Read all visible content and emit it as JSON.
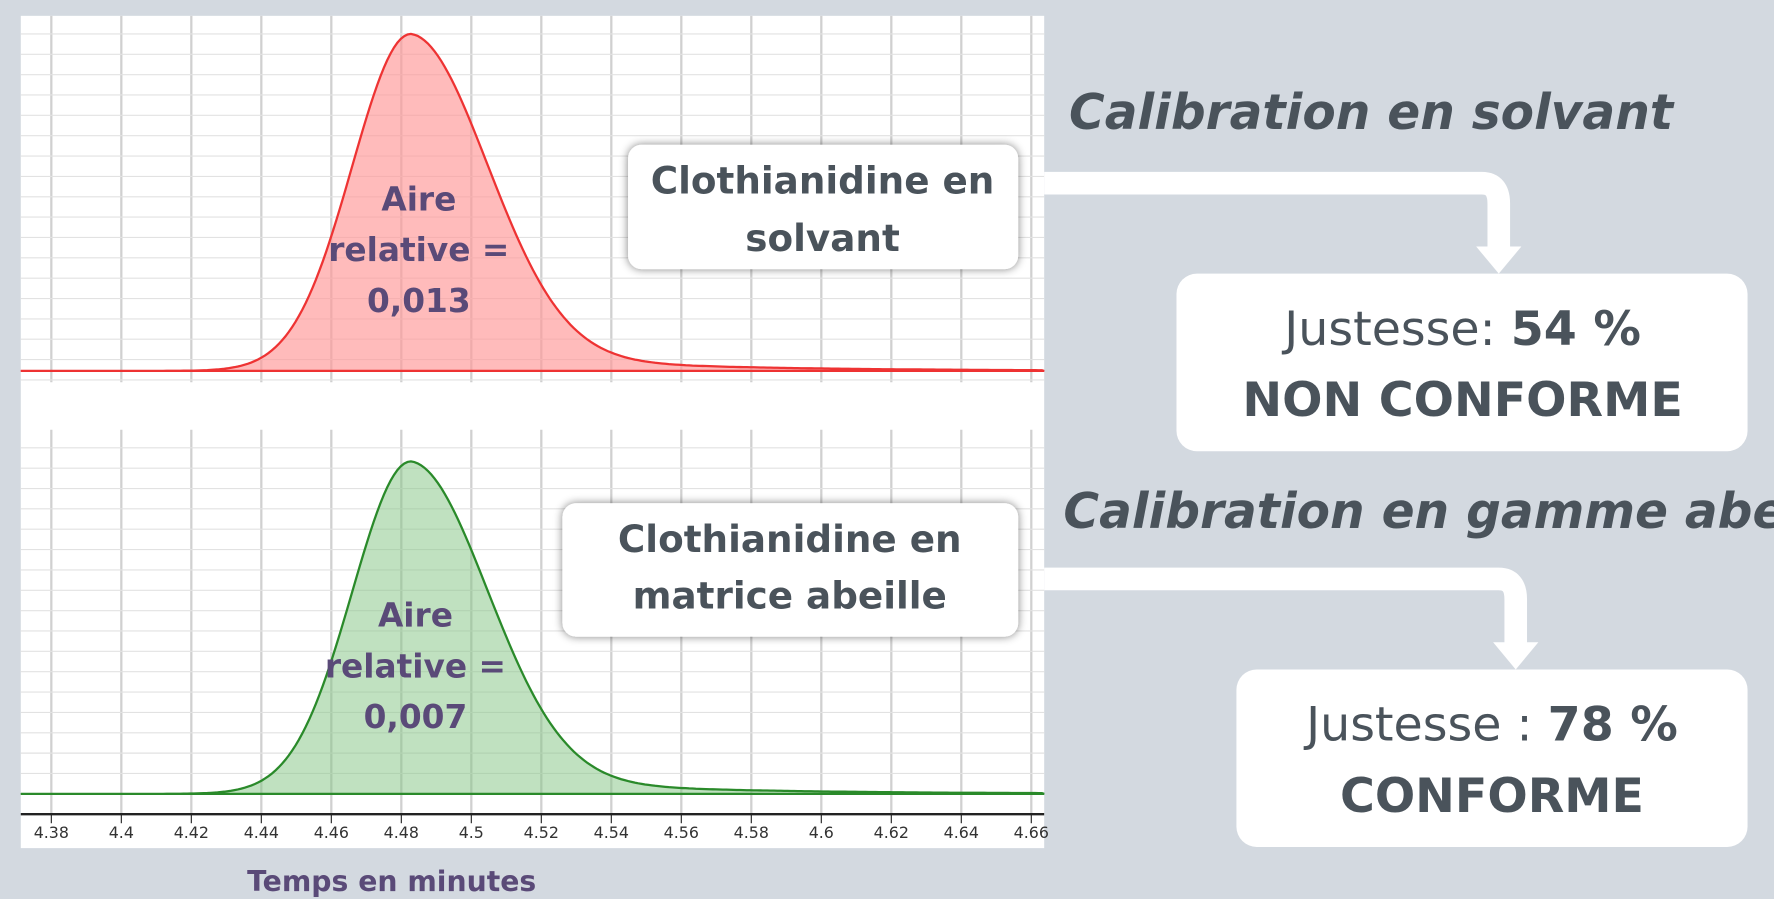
{
  "top_peak": {
    "annotation": [
      "Aire",
      "relative  =",
      "0,013"
    ],
    "box": [
      "Clothianidine en",
      "solvant"
    ]
  },
  "bottom_peak": {
    "annotation": [
      "Aire",
      "relative =",
      "0,007"
    ],
    "box": [
      "Clothianidine en",
      "matrice abeille"
    ]
  },
  "x_axis": {
    "ticks": [
      "4.38",
      "4.4",
      "4.42",
      "4.44",
      "4.46",
      "4.48",
      "4.5",
      "4.52",
      "4.54",
      "4.56",
      "4.58",
      "4.6",
      "4.62",
      "4.64",
      "4.66"
    ],
    "label": "Temps en minutes"
  },
  "results": [
    {
      "heading": "Calibration en solvant",
      "label": "Justesse: ",
      "value": "54 %",
      "verdict": "NON CONFORME"
    },
    {
      "heading": "Calibration en gamme abeille",
      "label": "Justesse : ",
      "value": "78 %",
      "verdict": "CONFORME"
    }
  ]
}
